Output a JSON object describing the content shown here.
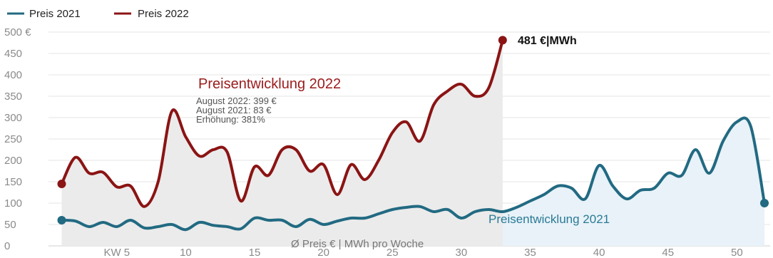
{
  "chart_data": {
    "type": "area",
    "xlabel": "Ø Preis € | MWh pro Woche",
    "ylabel": "",
    "ylim": [
      0,
      500
    ],
    "xlim": [
      1,
      52
    ],
    "x_ticks": [
      {
        "x": 5,
        "label": "KW 5"
      },
      {
        "x": 10,
        "label": "10"
      },
      {
        "x": 15,
        "label": "15"
      },
      {
        "x": 20,
        "label": "20"
      },
      {
        "x": 25,
        "label": "25"
      },
      {
        "x": 30,
        "label": "30"
      },
      {
        "x": 35,
        "label": "35"
      },
      {
        "x": 40,
        "label": "40"
      },
      {
        "x": 45,
        "label": "45"
      },
      {
        "x": 50,
        "label": "50"
      }
    ],
    "y_ticks": [
      {
        "y": 0,
        "label": "0"
      },
      {
        "y": 50,
        "label": "50"
      },
      {
        "y": 100,
        "label": "100"
      },
      {
        "y": 150,
        "label": "150"
      },
      {
        "y": 200,
        "label": "200"
      },
      {
        "y": 250,
        "label": "250"
      },
      {
        "y": 300,
        "label": "300"
      },
      {
        "y": 350,
        "label": "350"
      },
      {
        "y": 400,
        "label": "400"
      },
      {
        "y": 450,
        "label": "450"
      },
      {
        "y": 500,
        "label": "500 €"
      }
    ],
    "grid": true,
    "legend_position": "top-left",
    "series": [
      {
        "name": "Preis 2021",
        "color": "#226a82",
        "fill": "#e8f2f8",
        "x": [
          1,
          2,
          3,
          4,
          5,
          6,
          7,
          8,
          9,
          10,
          11,
          12,
          13,
          14,
          15,
          16,
          17,
          18,
          19,
          20,
          21,
          22,
          23,
          24,
          25,
          26,
          27,
          28,
          29,
          30,
          31,
          32,
          33,
          34,
          35,
          36,
          37,
          38,
          39,
          40,
          41,
          42,
          43,
          44,
          45,
          46,
          47,
          48,
          49,
          50,
          51,
          52
        ],
        "values": [
          60,
          58,
          45,
          55,
          45,
          60,
          42,
          45,
          50,
          38,
          55,
          48,
          45,
          40,
          65,
          60,
          60,
          45,
          62,
          50,
          58,
          65,
          65,
          75,
          85,
          90,
          92,
          80,
          85,
          65,
          80,
          85,
          80,
          90,
          105,
          120,
          140,
          135,
          110,
          188,
          140,
          110,
          130,
          135,
          170,
          165,
          225,
          170,
          245,
          290,
          280,
          100
        ]
      },
      {
        "name": "Preis 2022",
        "color": "#8b1414",
        "fill": "#ebebeb",
        "x": [
          1,
          2,
          3,
          4,
          5,
          6,
          7,
          8,
          9,
          10,
          11,
          12,
          13,
          14,
          15,
          16,
          17,
          18,
          19,
          20,
          21,
          22,
          23,
          24,
          25,
          26,
          27,
          28,
          29,
          30,
          31,
          32,
          33
        ],
        "values": [
          145,
          207,
          170,
          172,
          138,
          140,
          92,
          150,
          315,
          255,
          210,
          225,
          220,
          105,
          185,
          165,
          225,
          225,
          175,
          190,
          120,
          190,
          155,
          200,
          265,
          290,
          245,
          330,
          362,
          378,
          350,
          370,
          481
        ]
      }
    ],
    "annotations": {
      "title_2022": "Preisentwicklung 2022",
      "title_2021": "Preisentwicklung 2021",
      "info_lines": [
        "August 2022: 399 €",
        "August 2021: 83 €",
        "Erhöhung: 381%"
      ],
      "end_label": "481 €|MWh"
    }
  }
}
